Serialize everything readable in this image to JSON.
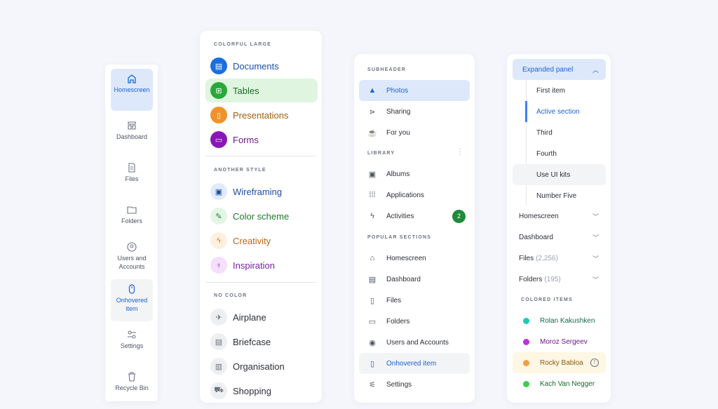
{
  "rail": {
    "items": [
      {
        "label": "Homescreen",
        "icon": "home-icon",
        "state": "active"
      },
      {
        "label": "Dashboard",
        "icon": "dashboard-icon"
      },
      {
        "label": "Files",
        "icon": "file-icon"
      },
      {
        "label": "Folders",
        "icon": "folder-icon"
      },
      {
        "label": "Users and Accounts",
        "icon": "user-circle-icon"
      },
      {
        "label": "Onhovered item",
        "icon": "mouse-icon",
        "state": "hover"
      },
      {
        "label": "Settings",
        "icon": "settings-sliders-icon"
      },
      {
        "label": "Recycle Bin",
        "icon": "trash-icon"
      }
    ]
  },
  "panel2": {
    "colorful_header": "COLORFUL LARGE",
    "colorful": [
      {
        "label": "Documents",
        "icon": "document-icon",
        "color": "#1a6fe0"
      },
      {
        "label": "Tables",
        "icon": "table-icon",
        "color": "#2aa83a",
        "selected": true
      },
      {
        "label": "Presentations",
        "icon": "presentation-icon",
        "color": "#f0922a"
      },
      {
        "label": "Forms",
        "icon": "form-icon",
        "color": "#8a16b8"
      }
    ],
    "another_header": "ANOTHER STYLE",
    "another": [
      {
        "label": "Wireframing",
        "icon": "wireframe-icon",
        "color": "#1e4fa0"
      },
      {
        "label": "Color scheme",
        "icon": "eyedropper-icon",
        "color": "#1f7a30"
      },
      {
        "label": "Creativity",
        "icon": "bolt-icon",
        "color": "#b86a14"
      },
      {
        "label": "Inspiration",
        "icon": "lightbulb-icon",
        "color": "#7a1fa0"
      }
    ],
    "nocolor_header": "NO COLOR",
    "nocolor": [
      {
        "label": "Airplane",
        "icon": "airplane-icon"
      },
      {
        "label": "Briefcase",
        "icon": "briefcase-icon"
      },
      {
        "label": "Organisation",
        "icon": "building-icon"
      },
      {
        "label": "Shopping",
        "icon": "cart-icon"
      }
    ]
  },
  "panel3": {
    "subheader": "SUBHEADER",
    "top": [
      {
        "label": "Photos",
        "icon": "mountain-icon"
      },
      {
        "label": "Sharing",
        "icon": "share-icon"
      },
      {
        "label": "For you",
        "icon": "coffee-icon"
      }
    ],
    "library_header": "LIBRARY",
    "library": [
      {
        "label": "Albums",
        "icon": "album-icon"
      },
      {
        "label": "Applications",
        "icon": "grid-icon"
      },
      {
        "label": "Activities",
        "icon": "bolt-icon",
        "badge": "2"
      }
    ],
    "popular_header": "POPULAR SECTIONS",
    "popular": [
      {
        "label": "Homescreen",
        "icon": "home-icon"
      },
      {
        "label": "Dashboard",
        "icon": "dashboard-icon"
      },
      {
        "label": "Files",
        "icon": "file-icon"
      },
      {
        "label": "Folders",
        "icon": "folder-icon"
      },
      {
        "label": "Users and Accounts",
        "icon": "user-circle-icon"
      },
      {
        "label": "Onhovered item",
        "icon": "mouse-icon"
      },
      {
        "label": "Settings",
        "icon": "settings-sliders-icon"
      }
    ]
  },
  "panel4": {
    "expanded": "Expanded panel",
    "subitems": [
      "First item",
      "Active section",
      "Third",
      "Fourth",
      "Use UI kits",
      "Number Five"
    ],
    "collapsed": [
      {
        "label": "Homescreen"
      },
      {
        "label": "Dashboard"
      },
      {
        "label": "Files",
        "count": "(2,256)"
      },
      {
        "label": "Folders",
        "count": "(195)"
      }
    ],
    "colored_header": "COLORED ITEMS",
    "people": [
      {
        "name": "Rolan Kakushken",
        "color": "#1fc9b9",
        "text": "#146a4e"
      },
      {
        "name": "Moroz Sergeev",
        "color": "#c02ee0",
        "text": "#6a1a8a"
      },
      {
        "name": "Rocky Babloa",
        "color": "#f0a040",
        "text": "#8a5a14"
      },
      {
        "name": "Kach Van Negger",
        "color": "#3ccf4a",
        "text": "#1a6a2a"
      }
    ]
  }
}
